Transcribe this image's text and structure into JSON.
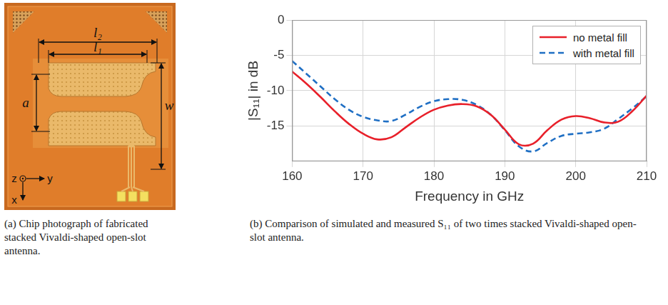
{
  "figure": {
    "panel_a": {
      "caption": "(a) Chip photograph of fabricated stacked Vivaldi-shaped open-slot antenna.",
      "dimension_labels": [
        "l₂",
        "l₁",
        "a",
        "w"
      ],
      "axis_labels": [
        "z",
        "y",
        "x"
      ]
    },
    "panel_b": {
      "caption": "(b) Comparison of simulated and measured S₁₁ of two times stacked Vivaldi-shaped open-slot antenna."
    }
  },
  "chart_data": {
    "type": "line",
    "x_label": "Frequency in GHz",
    "y_label": "|S₁₁| in dB",
    "x": [
      160,
      162,
      164,
      166,
      168,
      170,
      172,
      174,
      176,
      178,
      180,
      182,
      184,
      186,
      188,
      190,
      192,
      194,
      196,
      198,
      200,
      202,
      204,
      206,
      208,
      210
    ],
    "series": [
      {
        "name": "no metal fill",
        "color": "#e8202a",
        "line_style": "solid",
        "values": [
          -7.3,
          -9.0,
          -10.9,
          -12.9,
          -14.7,
          -16.1,
          -16.9,
          -16.6,
          -15.2,
          -13.8,
          -12.7,
          -12.1,
          -11.9,
          -12.2,
          -13.4,
          -15.5,
          -17.6,
          -17.5,
          -15.6,
          -14.1,
          -13.6,
          -13.9,
          -14.5,
          -14.4,
          -12.9,
          -10.7
        ]
      },
      {
        "name": "with metal fill",
        "color": "#1f6fc4",
        "line_style": "dashed",
        "values": [
          -5.8,
          -7.6,
          -9.4,
          -11.2,
          -12.7,
          -13.7,
          -14.2,
          -14.3,
          -13.4,
          -12.3,
          -11.5,
          -11.2,
          -11.3,
          -12.0,
          -13.4,
          -15.6,
          -17.9,
          -18.6,
          -17.4,
          -16.4,
          -16.1,
          -15.9,
          -15.4,
          -14.0,
          -12.5,
          -10.8
        ]
      }
    ],
    "xlim": [
      160,
      210
    ],
    "xticks": [
      160,
      170,
      180,
      190,
      200,
      210
    ],
    "ylim": [
      -20,
      0
    ],
    "yticks": [
      -15,
      -10,
      -5,
      0
    ],
    "grid": true,
    "legend": "upper right"
  }
}
